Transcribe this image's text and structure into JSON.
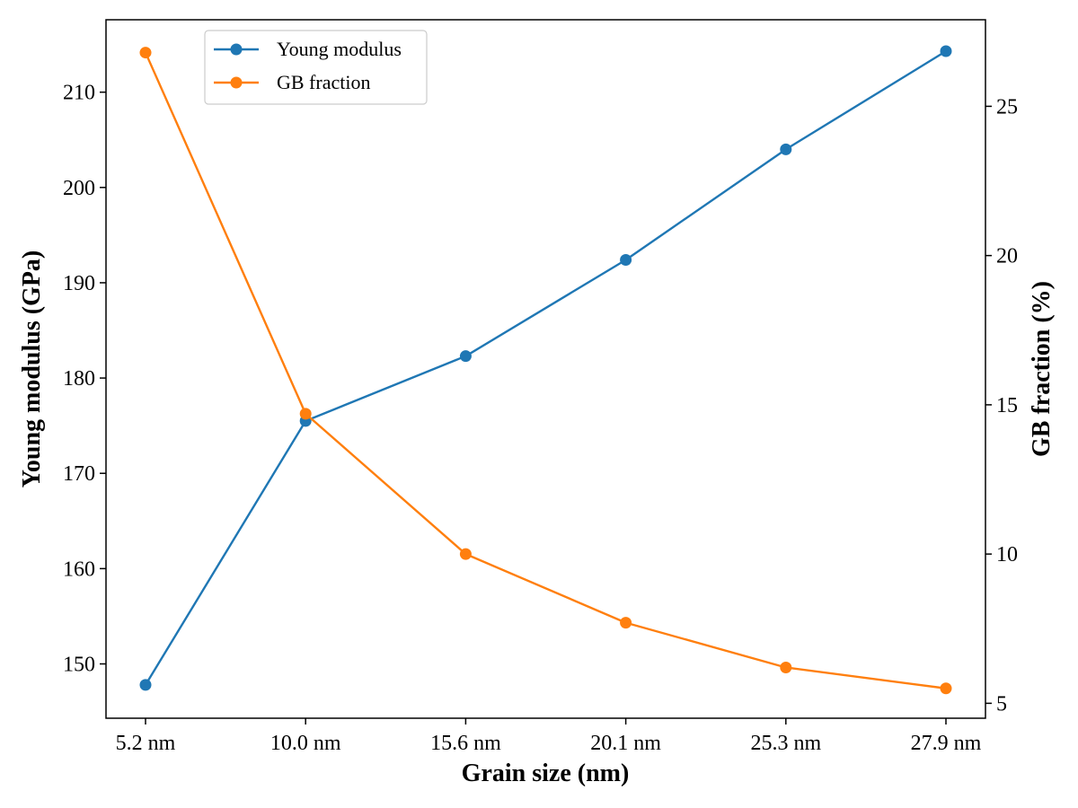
{
  "chart_data": {
    "type": "line",
    "categories": [
      "5.2 nm",
      "10.0 nm",
      "15.6 nm",
      "20.1 nm",
      "25.3 nm",
      "27.9 nm"
    ],
    "xlabel": "Grain size (nm)",
    "ylabel": "Young modulus (GPa)",
    "y2label": "GB fraction (%)",
    "ylim": [
      144.3,
      217.6
    ],
    "y2lim": [
      4.5,
      27.9
    ],
    "yticks": [
      150,
      160,
      170,
      180,
      190,
      200,
      210
    ],
    "y2ticks": [
      5,
      10,
      15,
      20,
      25
    ],
    "grid": false,
    "legend_position": "top-left",
    "series": [
      {
        "name": "Young modulus",
        "axis": "left",
        "color": "#1f77b4",
        "values": [
          147.8,
          175.5,
          182.3,
          192.4,
          204.0,
          214.3
        ]
      },
      {
        "name": "GB fraction",
        "axis": "right",
        "color": "#ff7f0e",
        "values": [
          26.8,
          14.7,
          10.0,
          7.7,
          6.2,
          5.5
        ]
      }
    ]
  }
}
